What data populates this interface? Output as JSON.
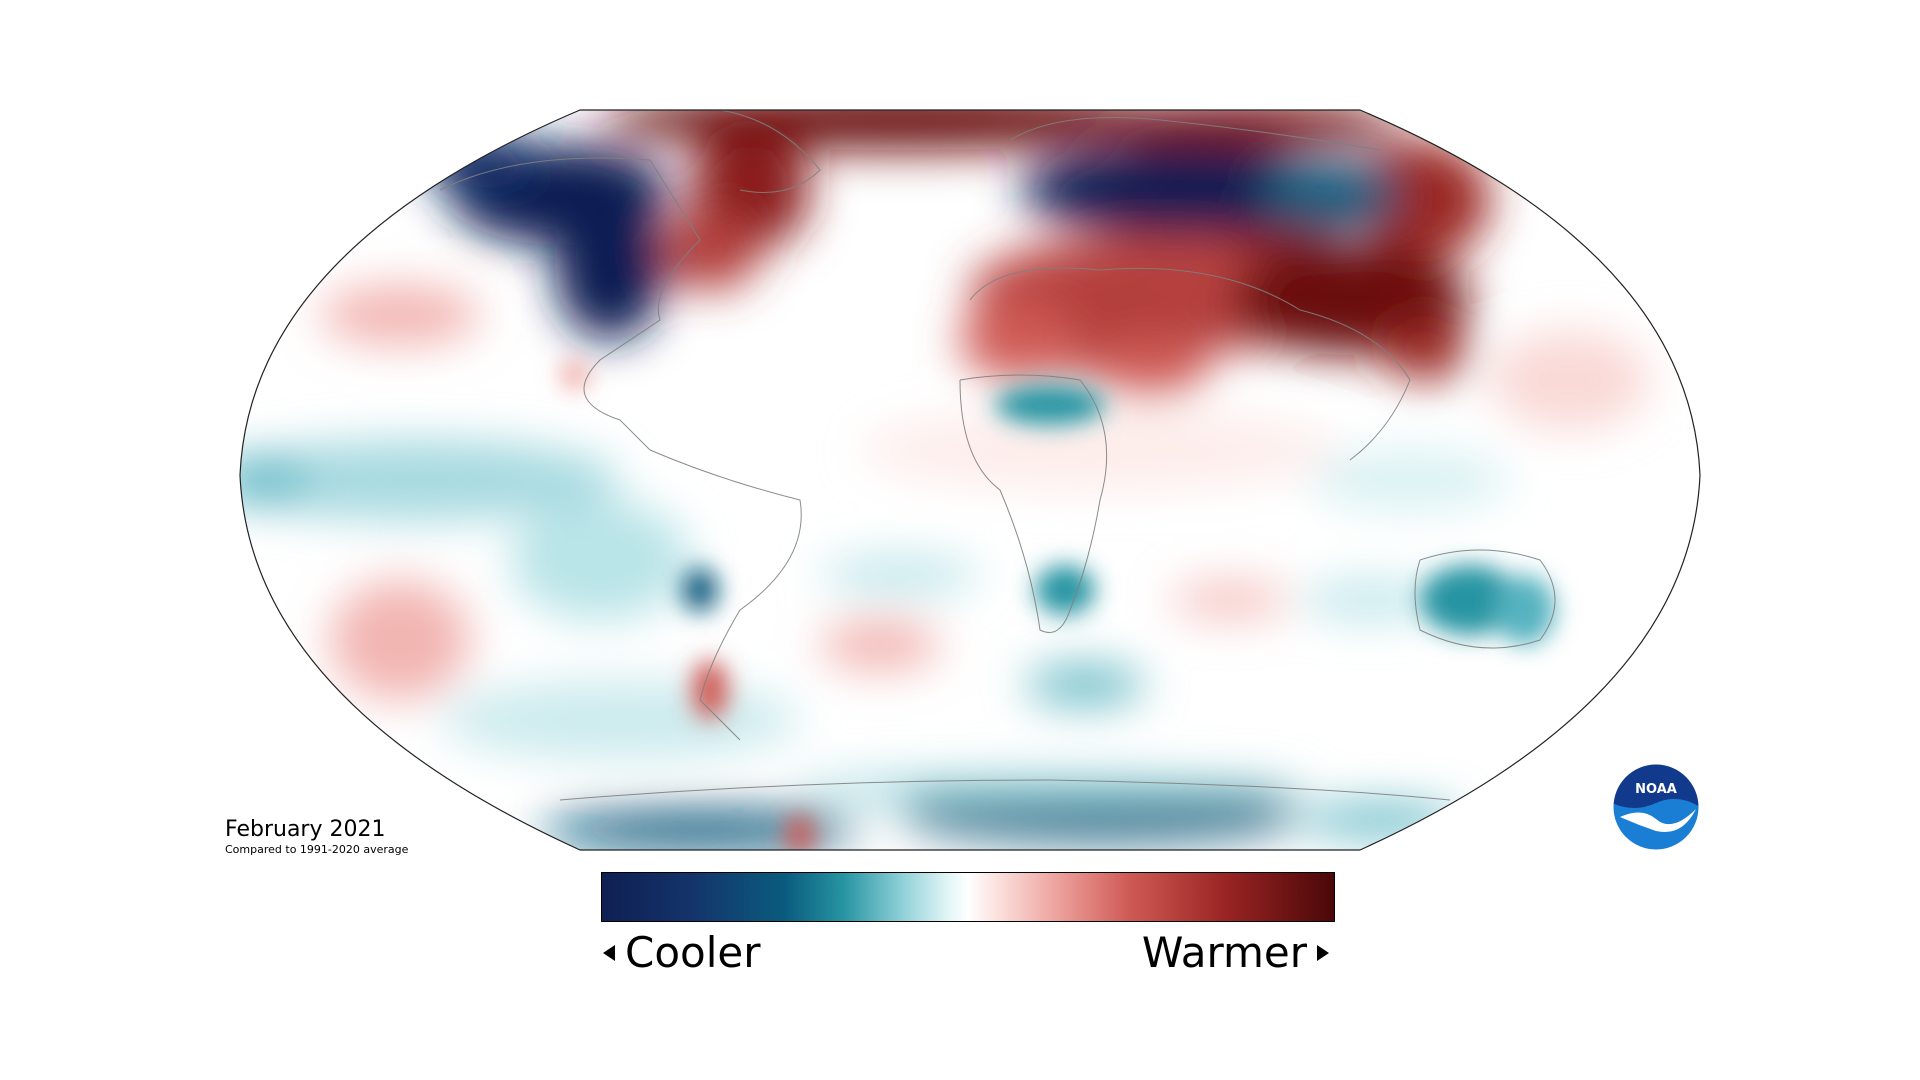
{
  "map": {
    "title": "February 2021",
    "subtitle": "Compared to 1991-2020 average",
    "projection": "robinson",
    "colors": {
      "cool_dark": "#0f1f52",
      "cool_mid": "#0a5c7e",
      "cool_light": "#8fd0d8",
      "neutral": "#ffffff",
      "warm_light": "#eea39f",
      "warm_mid": "#cf5a55",
      "warm_dark": "#4b0708"
    }
  },
  "legend": {
    "cooler_label": "Cooler",
    "warmer_label": "Warmer"
  },
  "logo": {
    "text": "NOAA",
    "icon": "noaa-logo-icon",
    "colors": {
      "top": "#123a8c",
      "bottom": "#1a7fd4",
      "bird": "#ffffff"
    }
  }
}
